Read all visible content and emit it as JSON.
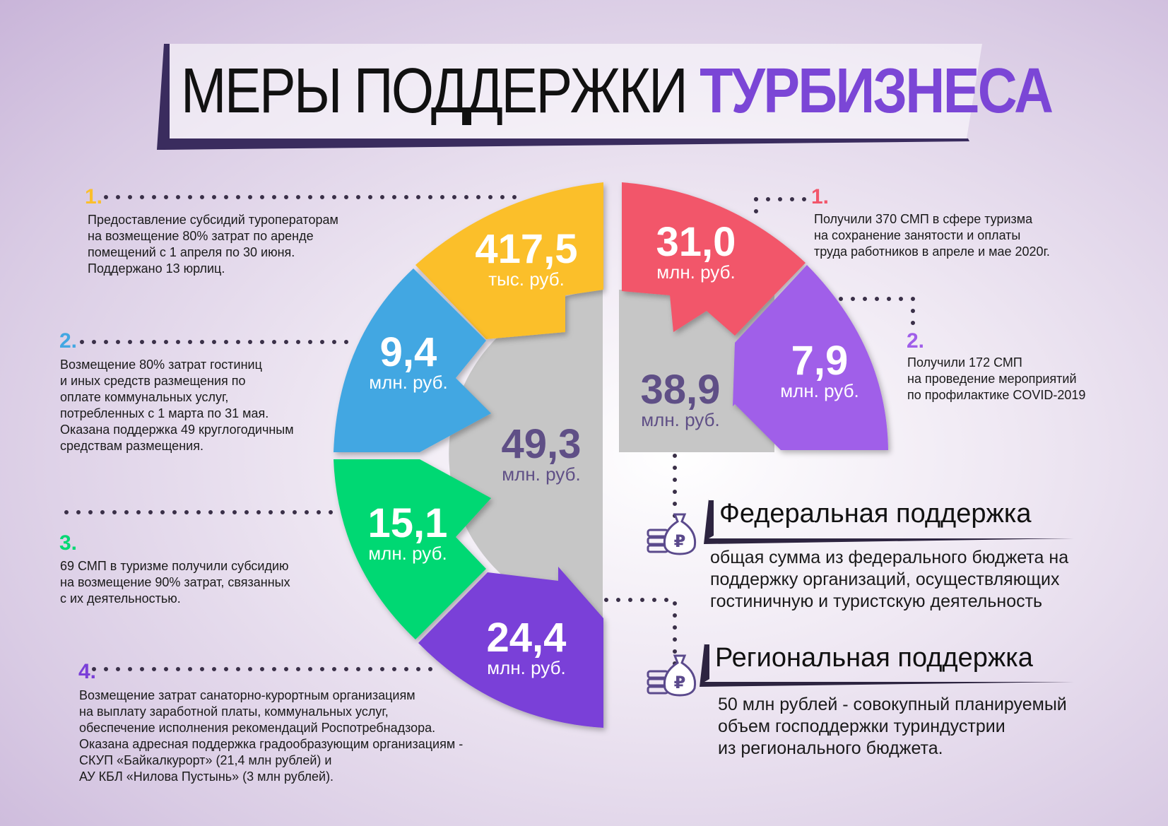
{
  "title": {
    "main": "МЕРЫ ПОДДЕРЖКИ",
    "accent": "ТУРБИЗНЕСА"
  },
  "colors": {
    "accent": "#7b46d6",
    "yellow": "#fbbf2c",
    "blue": "#42a7e2",
    "green": "#00d873",
    "purple_dark": "#7a3fd8",
    "red": "#f2566b",
    "purple_light": "#a05ee9",
    "center_grey": "#c6c6c6",
    "center_text": "#5f4f86"
  },
  "regional_slices": [
    {
      "value": "417,5",
      "unit": "тыс. руб."
    },
    {
      "value": "9,4",
      "unit": "млн. руб."
    },
    {
      "value": "15,1",
      "unit": "млн. руб."
    },
    {
      "value": "24,4",
      "unit": "млн. руб."
    }
  ],
  "regional_center": {
    "value": "49,3",
    "unit": "млн. руб."
  },
  "federal_slices": [
    {
      "value": "31,0",
      "unit": "млн. руб."
    },
    {
      "value": "7,9",
      "unit": "млн. руб."
    }
  ],
  "federal_center": {
    "value": "38,9",
    "unit": "млн. руб."
  },
  "left_items": [
    {
      "num": "1.",
      "lines": [
        "Предоставление субсидий туроператорам",
        "на возмещение 80% затрат по аренде",
        "помещений с 1 апреля по 30 июня.",
        "Поддержано 13 юрлиц."
      ]
    },
    {
      "num": "2.",
      "lines": [
        "Возмещение 80% затрат гостиниц",
        "и иных средств размещения по",
        "оплате коммунальных услуг,",
        "потребленных с 1 марта по 31 мая.",
        "Оказана поддержка 49 круглогодичным",
        "средствам размещения."
      ]
    },
    {
      "num": "3.",
      "lines": [
        "69 СМП в туризме получили субсидию",
        "на возмещение 90% затрат, связанных",
        "с их деятельностью."
      ]
    },
    {
      "num": "4.",
      "lines": [
        "Возмещение затрат санаторно-курортным организациям",
        "на выплату заработной платы, коммунальных услуг,",
        "обеспечение исполнения рекомендаций Роспотребнадзора.",
        "Оказана адресная поддержка градообразующим организациям -",
        "СКУП «Байкалкурорт» (21,4 млн рублей) и",
        "АУ КБЛ «Нилова Пустынь» (3 млн рублей)."
      ]
    }
  ],
  "right_items": [
    {
      "num": "1.",
      "lines": [
        "Получили 370 СМП в сфере туризма",
        "на сохранение занятости и оплаты",
        "труда работников в апреле и мае 2020г."
      ]
    },
    {
      "num": "2.",
      "lines": [
        "Получили 172 СМП",
        "на проведение мероприятий",
        "по профилактике COVID-2019"
      ]
    }
  ],
  "federal": {
    "title": "Федеральная поддержка",
    "lines": [
      "общая сумма из федерального бюджета на",
      "поддержку организаций, осуществляющих",
      "гостиничную и туристскую деятельность"
    ]
  },
  "regional": {
    "title": "Региональная поддержка",
    "lines": [
      "50 млн рублей - совокупный планируемый",
      "объем господдержки туриндустрии",
      "из регионального бюджета."
    ]
  },
  "icons": {
    "money": "money-bag-coins-icon",
    "currency_symbol": "₽"
  }
}
